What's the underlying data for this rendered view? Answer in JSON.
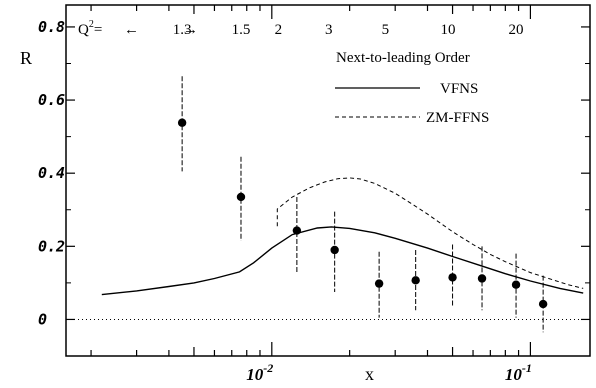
{
  "chart_data": {
    "type": "scatter",
    "ylabel": "R",
    "xlabel": "x",
    "x_scale": "log",
    "xlim": [
      0.0016,
      0.17
    ],
    "ylim": [
      -0.1,
      0.86
    ],
    "yticks": [
      0,
      0.2,
      0.4,
      0.6,
      0.8
    ],
    "ytick_labels": [
      "0",
      "0.2",
      "0.4",
      "0.6",
      "0.8"
    ],
    "xticks": [
      0.01,
      0.1
    ],
    "xtick_labels": [
      {
        "base": "10",
        "exp": "-2"
      },
      {
        "base": "10",
        "exp": "-1"
      }
    ],
    "q2_header": {
      "prefix": "Q",
      "prefix_sup": "2",
      "eq": "=",
      "left_arrow": "←",
      "right_arrow": "→",
      "values": [
        {
          "label": "1.3",
          "x": 0.0045
        },
        {
          "label": "1.5",
          "x": 0.0076
        },
        {
          "label": "2",
          "x": 0.0106
        },
        {
          "label": "3",
          "x": 0.0166
        },
        {
          "label": "5",
          "x": 0.0275
        },
        {
          "label": "10",
          "x": 0.048
        },
        {
          "label": "20",
          "x": 0.088
        }
      ]
    },
    "legend": {
      "title": "Next-to-leading Order",
      "entries": [
        {
          "label": "VFNS",
          "style": "solid"
        },
        {
          "label": "ZM-FFNS",
          "style": "dashed"
        }
      ]
    },
    "series": [
      {
        "name": "VFNS",
        "style": "solid",
        "x": [
          0.0022,
          0.003,
          0.004,
          0.005,
          0.006,
          0.0075,
          0.0085,
          0.01,
          0.012,
          0.015,
          0.017,
          0.02,
          0.025,
          0.03,
          0.04,
          0.05,
          0.065,
          0.08,
          0.1,
          0.13,
          0.16
        ],
        "y": [
          0.068,
          0.078,
          0.09,
          0.1,
          0.112,
          0.13,
          0.155,
          0.195,
          0.232,
          0.25,
          0.253,
          0.249,
          0.237,
          0.222,
          0.195,
          0.172,
          0.146,
          0.125,
          0.105,
          0.085,
          0.072
        ]
      },
      {
        "name": "ZM-FFNS",
        "style": "dashed",
        "x": [
          0.0105,
          0.0105,
          0.012,
          0.014,
          0.016,
          0.018,
          0.02,
          0.022,
          0.025,
          0.03,
          0.035,
          0.04,
          0.05,
          0.06,
          0.07,
          0.08,
          0.1,
          0.12,
          0.14,
          0.16
        ],
        "y": [
          0.255,
          0.302,
          0.335,
          0.36,
          0.376,
          0.385,
          0.387,
          0.384,
          0.372,
          0.345,
          0.315,
          0.288,
          0.24,
          0.205,
          0.178,
          0.158,
          0.128,
          0.11,
          0.095,
          0.085
        ]
      }
    ],
    "data_points": [
      {
        "x": 0.0045,
        "y": 0.538,
        "ylow": 0.405,
        "yhigh": 0.665
      },
      {
        "x": 0.0076,
        "y": 0.335,
        "ylow": 0.215,
        "yhigh": 0.445
      },
      {
        "x": 0.0125,
        "y": 0.243,
        "ylow": 0.125,
        "yhigh": 0.335
      },
      {
        "x": 0.0175,
        "y": 0.19,
        "ylow": 0.075,
        "yhigh": 0.295
      },
      {
        "x": 0.026,
        "y": 0.098,
        "ylow": 0.005,
        "yhigh": 0.185
      },
      {
        "x": 0.036,
        "y": 0.107,
        "ylow": 0.025,
        "yhigh": 0.19
      },
      {
        "x": 0.05,
        "y": 0.115,
        "ylow": 0.035,
        "yhigh": 0.205
      },
      {
        "x": 0.065,
        "y": 0.112,
        "ylow": 0.025,
        "yhigh": 0.2
      },
      {
        "x": 0.088,
        "y": 0.095,
        "ylow": 0.005,
        "yhigh": 0.18
      },
      {
        "x": 0.112,
        "y": 0.042,
        "ylow": -0.035,
        "yhigh": 0.12
      }
    ],
    "reference_line": {
      "y": 0,
      "style": "dotted"
    }
  }
}
